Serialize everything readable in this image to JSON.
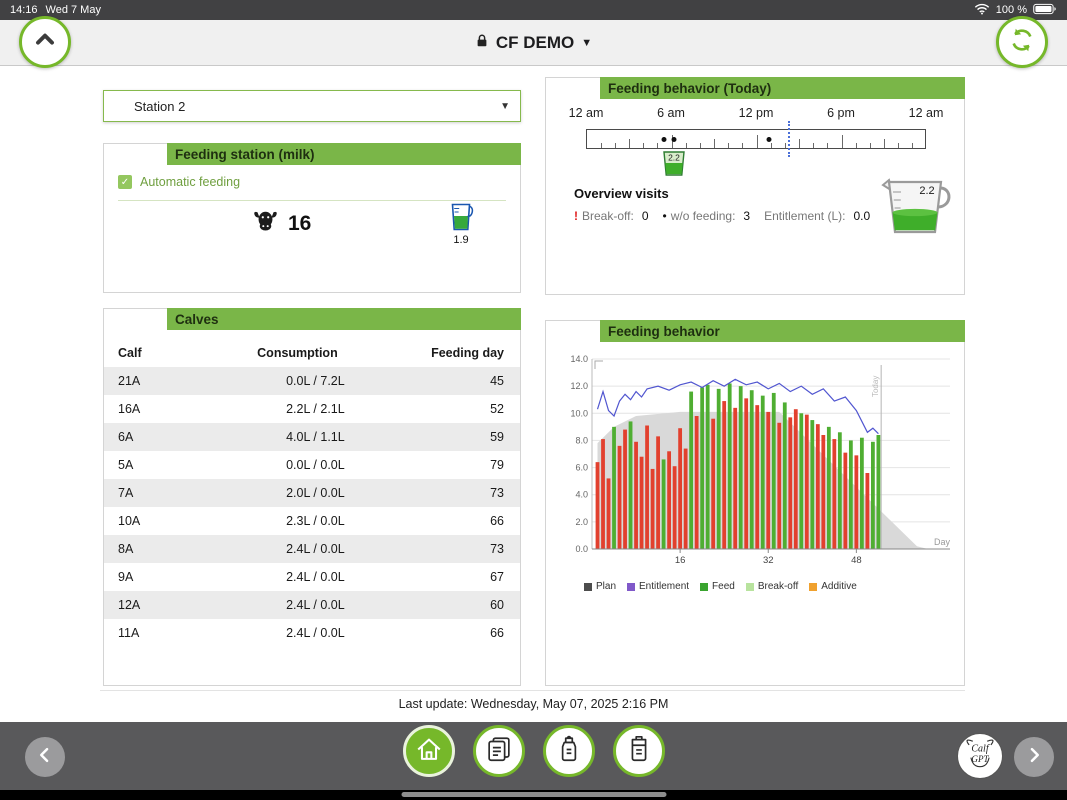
{
  "status_bar": {
    "time": "14:16",
    "date": "Wed 7 May",
    "battery_pct": "100 %"
  },
  "header": {
    "title": "CF DEMO",
    "caret": "▼"
  },
  "station_select": {
    "value": "Station 2",
    "caret": "▼"
  },
  "feeding_station": {
    "title": "Feeding station (milk)",
    "auto_feeding_label": "Automatic feeding",
    "check_glyph": "✓",
    "calf_count": "16",
    "jug_value": "1.9"
  },
  "calves": {
    "title": "Calves",
    "columns": [
      "Calf",
      "Consumption",
      "Feeding day"
    ],
    "rows": [
      [
        "21A",
        "0.0L / 7.2L",
        "45"
      ],
      [
        "16A",
        "2.2L / 2.1L",
        "52"
      ],
      [
        "6A",
        "4.0L / 1.1L",
        "59"
      ],
      [
        "5A",
        "0.0L / 0.0L",
        "79"
      ],
      [
        "7A",
        "2.0L / 0.0L",
        "73"
      ],
      [
        "10A",
        "2.3L / 0.0L",
        "66"
      ],
      [
        "8A",
        "2.4L / 0.0L",
        "73"
      ],
      [
        "9A",
        "2.4L / 0.0L",
        "67"
      ],
      [
        "12A",
        "2.4L / 0.0L",
        "60"
      ],
      [
        "11A",
        "2.4L / 0.0L",
        "66"
      ]
    ]
  },
  "behavior_today": {
    "title": "Feeding behavior (Today)",
    "hour_labels": [
      {
        "label": "12 am",
        "hour": 0
      },
      {
        "label": "6 am",
        "hour": 6
      },
      {
        "label": "12 pm",
        "hour": 12
      },
      {
        "label": "6 pm",
        "hour": 18
      },
      {
        "label": "12 am",
        "hour": 24
      }
    ],
    "visit_dots_hours": [
      5.5,
      6.2,
      12.9
    ],
    "cup_hour": 6.2,
    "cup_value": "2.2",
    "now_hour": 14.27,
    "overview_title": "Overview visits",
    "alert_glyph": "!",
    "break_off_label": "Break-off:",
    "break_off_value": "0",
    "bullet_glyph": "•",
    "wo_feeding_label": "w/o feeding:",
    "wo_feeding_value": "3",
    "entitlement_label": "Entitlement (L):",
    "entitlement_value": "0.0",
    "big_cup_value": "2.2"
  },
  "chart_panel": {
    "title": "Feeding behavior"
  },
  "chart_data": {
    "type": "bar",
    "title": "Feeding behavior",
    "xlabel": "Day",
    "ylabel": "",
    "ylim": [
      0,
      14
    ],
    "xmax": 65,
    "yticks": [
      0,
      2,
      4,
      6,
      8,
      10,
      12,
      14
    ],
    "xticks": [
      16,
      32,
      48
    ],
    "today_day": 52.5,
    "today_label": "Today",
    "colors": {
      "bar_red": "#e2402e",
      "bar_green": "#4fae32",
      "line": "#5156d0",
      "plan": "#d9d9d9"
    },
    "plan_area": [
      [
        1,
        7.8
      ],
      [
        4,
        9.0
      ],
      [
        8,
        9.8
      ],
      [
        16,
        10.1
      ],
      [
        34,
        10.1
      ],
      [
        59,
        0.2
      ],
      [
        61,
        0
      ]
    ],
    "entitlement_line": [
      [
        1,
        10.3
      ],
      [
        2,
        11.6
      ],
      [
        3,
        10.2
      ],
      [
        4,
        9.8
      ],
      [
        5,
        10.9
      ],
      [
        6,
        11.4
      ],
      [
        7,
        11.0
      ],
      [
        8,
        11.6
      ],
      [
        9,
        11.2
      ],
      [
        10,
        11.8
      ],
      [
        12,
        12.0
      ],
      [
        14,
        11.7
      ],
      [
        16,
        12.1
      ],
      [
        18,
        12.3
      ],
      [
        20,
        11.9
      ],
      [
        22,
        12.4
      ],
      [
        24,
        12.0
      ],
      [
        26,
        12.5
      ],
      [
        28,
        12.1
      ],
      [
        30,
        12.3
      ],
      [
        32,
        11.8
      ],
      [
        34,
        12.2
      ],
      [
        36,
        11.6
      ],
      [
        38,
        12.0
      ],
      [
        40,
        11.4
      ],
      [
        42,
        11.8
      ],
      [
        44,
        10.9
      ],
      [
        46,
        11.2
      ],
      [
        48,
        10.2
      ],
      [
        49,
        9.4
      ],
      [
        50,
        8.6
      ],
      [
        51,
        8.9
      ],
      [
        52,
        8.5
      ]
    ],
    "bars": [
      {
        "d": 1,
        "v": 6.4,
        "c": "r"
      },
      {
        "d": 2,
        "v": 8.1,
        "c": "r"
      },
      {
        "d": 3,
        "v": 5.2,
        "c": "r"
      },
      {
        "d": 4,
        "v": 9.0,
        "c": "g"
      },
      {
        "d": 5,
        "v": 7.6,
        "c": "r"
      },
      {
        "d": 6,
        "v": 8.8,
        "c": "r"
      },
      {
        "d": 7,
        "v": 9.4,
        "c": "g"
      },
      {
        "d": 8,
        "v": 7.9,
        "c": "r"
      },
      {
        "d": 9,
        "v": 6.8,
        "c": "r"
      },
      {
        "d": 10,
        "v": 9.1,
        "c": "r"
      },
      {
        "d": 11,
        "v": 5.9,
        "c": "r"
      },
      {
        "d": 12,
        "v": 8.3,
        "c": "r"
      },
      {
        "d": 13,
        "v": 6.6,
        "c": "g"
      },
      {
        "d": 14,
        "v": 7.2,
        "c": "r"
      },
      {
        "d": 15,
        "v": 6.1,
        "c": "r"
      },
      {
        "d": 16,
        "v": 8.9,
        "c": "r"
      },
      {
        "d": 17,
        "v": 7.4,
        "c": "r"
      },
      {
        "d": 18,
        "v": 11.6,
        "c": "g"
      },
      {
        "d": 19,
        "v": 9.8,
        "c": "r"
      },
      {
        "d": 20,
        "v": 11.9,
        "c": "g"
      },
      {
        "d": 21,
        "v": 12.1,
        "c": "g"
      },
      {
        "d": 22,
        "v": 9.6,
        "c": "r"
      },
      {
        "d": 23,
        "v": 11.8,
        "c": "g"
      },
      {
        "d": 24,
        "v": 10.9,
        "c": "r"
      },
      {
        "d": 25,
        "v": 12.2,
        "c": "g"
      },
      {
        "d": 26,
        "v": 10.4,
        "c": "r"
      },
      {
        "d": 27,
        "v": 12.0,
        "c": "g"
      },
      {
        "d": 28,
        "v": 11.1,
        "c": "r"
      },
      {
        "d": 29,
        "v": 11.7,
        "c": "g"
      },
      {
        "d": 30,
        "v": 10.6,
        "c": "r"
      },
      {
        "d": 31,
        "v": 11.3,
        "c": "g"
      },
      {
        "d": 32,
        "v": 10.1,
        "c": "r"
      },
      {
        "d": 33,
        "v": 11.5,
        "c": "g"
      },
      {
        "d": 34,
        "v": 9.3,
        "c": "r"
      },
      {
        "d": 35,
        "v": 10.8,
        "c": "g"
      },
      {
        "d": 36,
        "v": 9.7,
        "c": "r"
      },
      {
        "d": 37,
        "v": 10.3,
        "c": "r"
      },
      {
        "d": 38,
        "v": 10.0,
        "c": "g"
      },
      {
        "d": 39,
        "v": 9.9,
        "c": "r"
      },
      {
        "d": 40,
        "v": 9.5,
        "c": "g"
      },
      {
        "d": 41,
        "v": 9.2,
        "c": "r"
      },
      {
        "d": 42,
        "v": 8.4,
        "c": "r"
      },
      {
        "d": 43,
        "v": 9.0,
        "c": "g"
      },
      {
        "d": 44,
        "v": 8.1,
        "c": "r"
      },
      {
        "d": 45,
        "v": 8.6,
        "c": "g"
      },
      {
        "d": 46,
        "v": 7.1,
        "c": "r"
      },
      {
        "d": 47,
        "v": 8.0,
        "c": "g"
      },
      {
        "d": 48,
        "v": 6.9,
        "c": "r"
      },
      {
        "d": 49,
        "v": 8.2,
        "c": "g"
      },
      {
        "d": 50,
        "v": 5.6,
        "c": "r"
      },
      {
        "d": 51,
        "v": 7.9,
        "c": "g"
      },
      {
        "d": 52,
        "v": 8.4,
        "c": "g"
      }
    ],
    "legend": [
      {
        "label": "Plan",
        "color": "#4d4d4d"
      },
      {
        "label": "Entitlement",
        "color": "#8059c9"
      },
      {
        "label": "Feed",
        "color": "#3aa42f"
      },
      {
        "label": "Break-off",
        "color": "#b8e39e"
      },
      {
        "label": "Additive",
        "color": "#f0a12e"
      }
    ]
  },
  "footer": {
    "last_update": "Last update: Wednesday, May 07, 2025 2:16 PM"
  },
  "branding": {
    "assistant_line1": "Calf",
    "assistant_line2": "GPT"
  }
}
